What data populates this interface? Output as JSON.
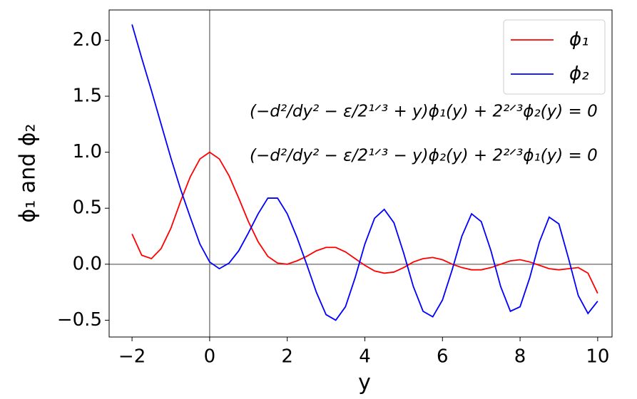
{
  "chart_data": {
    "type": "line",
    "x_label": "y",
    "y_label": "ϕ₁ and ϕ₂",
    "annotations": [
      "(−d²/dy² − ε/2¹ᐟ³ + y)ϕ₁(y) + 2²ᐟ³ϕ₂(y) = 0",
      "(−d²/dy² − ε/2¹ᐟ³ − y)ϕ₂(y) + 2²ᐟ³ϕ₁(y) = 0"
    ],
    "x": [
      -2,
      -1.75,
      -1.5,
      -1.25,
      -1,
      -0.75,
      -0.5,
      -0.25,
      0,
      0.25,
      0.5,
      0.75,
      1,
      1.25,
      1.5,
      1.75,
      2,
      2.25,
      2.5,
      2.75,
      3,
      3.25,
      3.5,
      3.75,
      4,
      4.25,
      4.5,
      4.75,
      5,
      5.25,
      5.5,
      5.75,
      6,
      6.25,
      6.5,
      6.75,
      7,
      7.25,
      7.5,
      7.75,
      8,
      8.25,
      8.5,
      8.75,
      9,
      9.25,
      9.5,
      9.75,
      10
    ],
    "series": [
      {
        "name": "ϕ₁",
        "color": "#ff0000",
        "values": [
          0.27,
          0.08,
          0.05,
          0.14,
          0.32,
          0.56,
          0.78,
          0.94,
          1.0,
          0.94,
          0.79,
          0.59,
          0.38,
          0.2,
          0.07,
          0.01,
          0.0,
          0.03,
          0.07,
          0.12,
          0.15,
          0.15,
          0.11,
          0.05,
          -0.01,
          -0.06,
          -0.08,
          -0.07,
          -0.03,
          0.02,
          0.05,
          0.06,
          0.04,
          0.0,
          -0.03,
          -0.05,
          -0.05,
          -0.03,
          0.0,
          0.03,
          0.04,
          0.02,
          -0.01,
          -0.04,
          -0.05,
          -0.04,
          -0.03,
          -0.08,
          -0.26
        ]
      },
      {
        "name": "ϕ₂",
        "color": "#0000ff",
        "values": [
          2.14,
          1.84,
          1.55,
          1.25,
          0.95,
          0.67,
          0.42,
          0.18,
          0.02,
          -0.04,
          0.01,
          0.12,
          0.28,
          0.45,
          0.59,
          0.59,
          0.45,
          0.24,
          0.0,
          -0.25,
          -0.45,
          -0.5,
          -0.38,
          -0.12,
          0.18,
          0.41,
          0.49,
          0.37,
          0.1,
          -0.2,
          -0.42,
          -0.47,
          -0.32,
          -0.05,
          0.25,
          0.45,
          0.38,
          0.12,
          -0.2,
          -0.42,
          -0.38,
          -0.12,
          0.2,
          0.42,
          0.36,
          0.05,
          -0.28,
          -0.44,
          -0.33
        ]
      }
    ],
    "xlim": [
      -2.59,
      10.37
    ],
    "ylim": [
      -0.65,
      2.27
    ],
    "xticks": [
      {
        "value": -2,
        "label": "−2"
      },
      0,
      2,
      4,
      6,
      8,
      10
    ],
    "yticks": [
      {
        "value": -0.5,
        "label": "−0.5"
      },
      {
        "value": 0,
        "label": "0.0"
      },
      {
        "value": 0.5,
        "label": "0.5"
      },
      {
        "value": 1,
        "label": "1.0"
      },
      {
        "value": 1.5,
        "label": "1.5"
      },
      {
        "value": 2,
        "label": "2.0"
      }
    ],
    "reference_lines": {
      "x": [
        0
      ],
      "y": [
        0
      ],
      "color": "#808080"
    },
    "legend": "upper right",
    "grid": false
  }
}
